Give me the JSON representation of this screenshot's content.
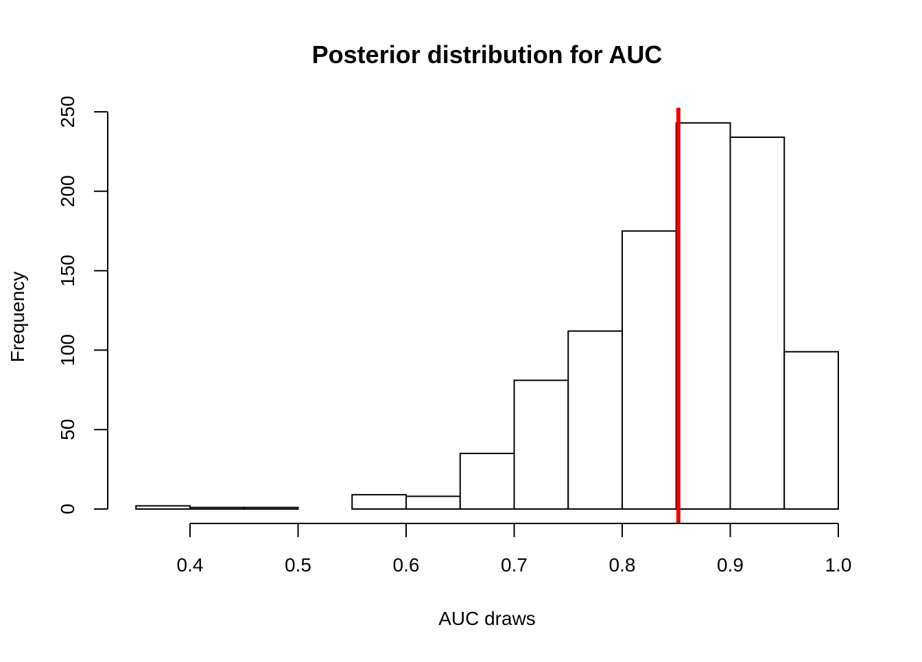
{
  "chart_data": {
    "type": "bar",
    "title": "Posterior distribution for AUC",
    "xlabel": "AUC draws",
    "ylabel": "Frequency",
    "bins": [
      {
        "start": 0.35,
        "end": 0.4,
        "count": 2
      },
      {
        "start": 0.4,
        "end": 0.45,
        "count": 1
      },
      {
        "start": 0.45,
        "end": 0.5,
        "count": 1
      },
      {
        "start": 0.5,
        "end": 0.55,
        "count": 0
      },
      {
        "start": 0.55,
        "end": 0.6,
        "count": 9
      },
      {
        "start": 0.6,
        "end": 0.65,
        "count": 8
      },
      {
        "start": 0.65,
        "end": 0.7,
        "count": 35
      },
      {
        "start": 0.7,
        "end": 0.75,
        "count": 81
      },
      {
        "start": 0.75,
        "end": 0.8,
        "count": 112
      },
      {
        "start": 0.8,
        "end": 0.85,
        "count": 175
      },
      {
        "start": 0.85,
        "end": 0.9,
        "count": 243
      },
      {
        "start": 0.9,
        "end": 0.95,
        "count": 234
      },
      {
        "start": 0.95,
        "end": 1.0,
        "count": 99
      }
    ],
    "reference_line": {
      "x": 0.852,
      "color": "#ee0000"
    },
    "x_ticks": [
      {
        "value": 0.4,
        "label": "0.4"
      },
      {
        "value": 0.5,
        "label": "0.5"
      },
      {
        "value": 0.6,
        "label": "0.6"
      },
      {
        "value": 0.7,
        "label": "0.7"
      },
      {
        "value": 0.8,
        "label": "0.8"
      },
      {
        "value": 0.9,
        "label": "0.9"
      },
      {
        "value": 1.0,
        "label": "1.0"
      }
    ],
    "y_ticks": [
      {
        "value": 0,
        "label": "0"
      },
      {
        "value": 50,
        "label": "50"
      },
      {
        "value": 100,
        "label": "100"
      },
      {
        "value": 150,
        "label": "150"
      },
      {
        "value": 200,
        "label": "200"
      },
      {
        "value": 250,
        "label": "250"
      }
    ],
    "xlim": [
      0.35,
      1.0
    ],
    "ylim": [
      0,
      250
    ],
    "grid": false,
    "bar_fill": "#ffffff",
    "bar_stroke": "#000000"
  }
}
